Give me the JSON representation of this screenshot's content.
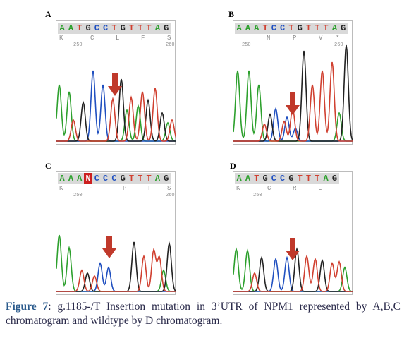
{
  "panels": [
    {
      "letter": "A",
      "sequence": [
        {
          "b": "A",
          "c": "#2da02d"
        },
        {
          "b": "A",
          "c": "#2da02d"
        },
        {
          "b": "T",
          "c": "#d04030"
        },
        {
          "b": "G",
          "c": "#222222"
        },
        {
          "b": "C",
          "c": "#2050c0"
        },
        {
          "b": "C",
          "c": "#2050c0"
        },
        {
          "b": "T",
          "c": "#d04030"
        },
        {
          "b": "G",
          "c": "#222222"
        },
        {
          "b": "T",
          "c": "#d04030"
        },
        {
          "b": "T",
          "c": "#d04030"
        },
        {
          "b": "T",
          "c": "#d04030"
        },
        {
          "b": "A",
          "c": "#2da02d"
        },
        {
          "b": "G",
          "c": "#222222"
        }
      ],
      "amino_acids": [
        "K",
        "C",
        "L",
        "F",
        "S"
      ],
      "numbers": [
        "250",
        "260"
      ]
    },
    {
      "letter": "B",
      "sequence": [
        {
          "b": "A",
          "c": "#2da02d"
        },
        {
          "b": "A",
          "c": "#2da02d"
        },
        {
          "b": "A",
          "c": "#2da02d"
        },
        {
          "b": "T",
          "c": "#d04030"
        },
        {
          "b": "C",
          "c": "#2050c0"
        },
        {
          "b": "C",
          "c": "#2050c0"
        },
        {
          "b": "T",
          "c": "#d04030"
        },
        {
          "b": "G",
          "c": "#222222"
        },
        {
          "b": "T",
          "c": "#d04030"
        },
        {
          "b": "T",
          "c": "#d04030"
        },
        {
          "b": "T",
          "c": "#d04030"
        },
        {
          "b": "A",
          "c": "#2da02d"
        },
        {
          "b": "G",
          "c": "#222222"
        }
      ],
      "amino_acids": [
        "N",
        "P",
        "V",
        "*"
      ],
      "numbers": [
        "250",
        "260"
      ]
    },
    {
      "letter": "C",
      "sequence": [
        {
          "b": "A",
          "c": "#2da02d"
        },
        {
          "b": "A",
          "c": "#2da02d"
        },
        {
          "b": "A",
          "c": "#2da02d"
        },
        {
          "b": "N",
          "c": "#ffffff",
          "bg": "#cc2020"
        },
        {
          "b": "C",
          "c": "#2050c0"
        },
        {
          "b": "C",
          "c": "#2050c0"
        },
        {
          "b": "C",
          "c": "#2050c0"
        },
        {
          "b": "G",
          "c": "#222222"
        },
        {
          "b": "T",
          "c": "#d04030"
        },
        {
          "b": "T",
          "c": "#d04030"
        },
        {
          "b": "T",
          "c": "#d04030"
        },
        {
          "b": "A",
          "c": "#2da02d"
        },
        {
          "b": "G",
          "c": "#222222"
        }
      ],
      "amino_acids": [
        "K",
        "-",
        "P",
        "F",
        "S"
      ],
      "numbers": [
        "250",
        "260"
      ]
    },
    {
      "letter": "D",
      "sequence": [
        {
          "b": "A",
          "c": "#2da02d"
        },
        {
          "b": "A",
          "c": "#2da02d"
        },
        {
          "b": "T",
          "c": "#d04030"
        },
        {
          "b": "G",
          "c": "#222222"
        },
        {
          "b": "C",
          "c": "#2050c0"
        },
        {
          "b": "C",
          "c": "#2050c0"
        },
        {
          "b": "G",
          "c": "#222222"
        },
        {
          "b": "T",
          "c": "#d04030"
        },
        {
          "b": "T",
          "c": "#d04030"
        },
        {
          "b": "T",
          "c": "#d04030"
        },
        {
          "b": "A",
          "c": "#2da02d"
        },
        {
          "b": "G",
          "c": "#222222"
        }
      ],
      "amino_acids": [
        "K",
        "C",
        "R",
        "L"
      ],
      "numbers": [
        "250"
      ]
    }
  ],
  "caption": {
    "figure_label": "Figure 7",
    "text": ": g.1185-/T Insertion mutation in 3’UTR of NPM1 represented by A,B,C chromatogram and wildtype by D chromatogram."
  },
  "colors": {
    "A": "#2da02d",
    "C": "#2050c0",
    "G": "#222222",
    "T": "#d04030",
    "arrow": "#c0392b"
  }
}
